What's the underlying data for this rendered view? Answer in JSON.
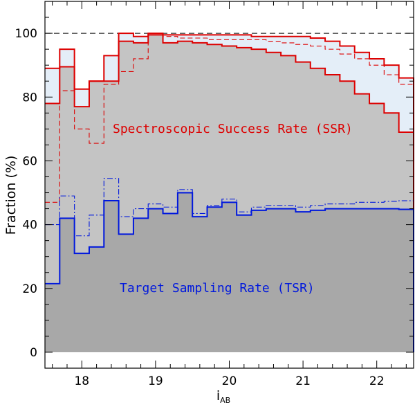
{
  "chart_data": {
    "type": "step",
    "xlabel": "i",
    "xlabel_sub": "AB",
    "ylabel": "Fraction (%)",
    "xlim": [
      17.5,
      22.5
    ],
    "ylim": [
      -5,
      110
    ],
    "xticks": [
      "18",
      "19",
      "20",
      "21",
      "22"
    ],
    "yticks": [
      "0",
      "20",
      "40",
      "60",
      "80",
      "100"
    ],
    "reference_line": 100,
    "bin_edges": [
      17.5,
      17.7,
      17.9,
      18.1,
      18.3,
      18.5,
      18.7,
      18.9,
      19.1,
      19.3,
      19.5,
      19.7,
      19.9,
      20.1,
      20.3,
      20.5,
      20.7,
      20.9,
      21.1,
      21.3,
      21.5,
      21.7,
      21.9,
      22.1,
      22.3,
      22.5
    ],
    "series": [
      {
        "name": "SSR upper",
        "color": "#dd0000",
        "style": "solid",
        "values": [
          89,
          95,
          82.5,
          85,
          93,
          100,
          99,
          100,
          99.5,
          99.5,
          99.5,
          99.5,
          99.5,
          99.5,
          99,
          99,
          99,
          99,
          98.5,
          97.5,
          96,
          94,
          92,
          90,
          86
        ]
      },
      {
        "name": "SSR lower",
        "color": "#dd0000",
        "style": "solid",
        "values": [
          78,
          89.5,
          77,
          85,
          85,
          97.5,
          97,
          99.5,
          97,
          97.5,
          97,
          96.5,
          96,
          95.5,
          95,
          94,
          93,
          91,
          89,
          87,
          85,
          81,
          78,
          75,
          69
        ]
      },
      {
        "name": "SSR dashed",
        "color": "#dd0000",
        "style": "dashed",
        "values": [
          47,
          82,
          70,
          65.5,
          84,
          88,
          92,
          99.5,
          99,
          98.5,
          98.5,
          98,
          98,
          98,
          98,
          97.5,
          97,
          96.5,
          96,
          95,
          93.5,
          92,
          90,
          87,
          84
        ]
      },
      {
        "name": "TSR",
        "color": "#0018dd",
        "style": "solid",
        "values": [
          21.5,
          42,
          31,
          33,
          47.5,
          37,
          42,
          45,
          43.5,
          50,
          42.5,
          45.5,
          47,
          43,
          44.5,
          45,
          45,
          44,
          44.5,
          45,
          45,
          45,
          45,
          45,
          44.8
        ]
      },
      {
        "name": "TSR dashdot",
        "color": "#0018dd",
        "style": "dashdot",
        "values": [
          40,
          49,
          36.5,
          43,
          54.5,
          42.5,
          45,
          46.5,
          45.5,
          51,
          43.5,
          46,
          48,
          44,
          45.5,
          46,
          46,
          45.5,
          46,
          46.5,
          46.5,
          47,
          47,
          47.3,
          47.5
        ]
      }
    ],
    "annotations": [
      {
        "text": "Spectroscopic Success Rate (SSR)",
        "color": "#dd0000"
      },
      {
        "text": "Target Sampling Rate (TSR)",
        "color": "#0018dd"
      }
    ],
    "fill_colors": {
      "light_blue": "#e4eef8",
      "light_grey": "#c4c4c4",
      "dark_grey": "#a8a8a8"
    }
  }
}
